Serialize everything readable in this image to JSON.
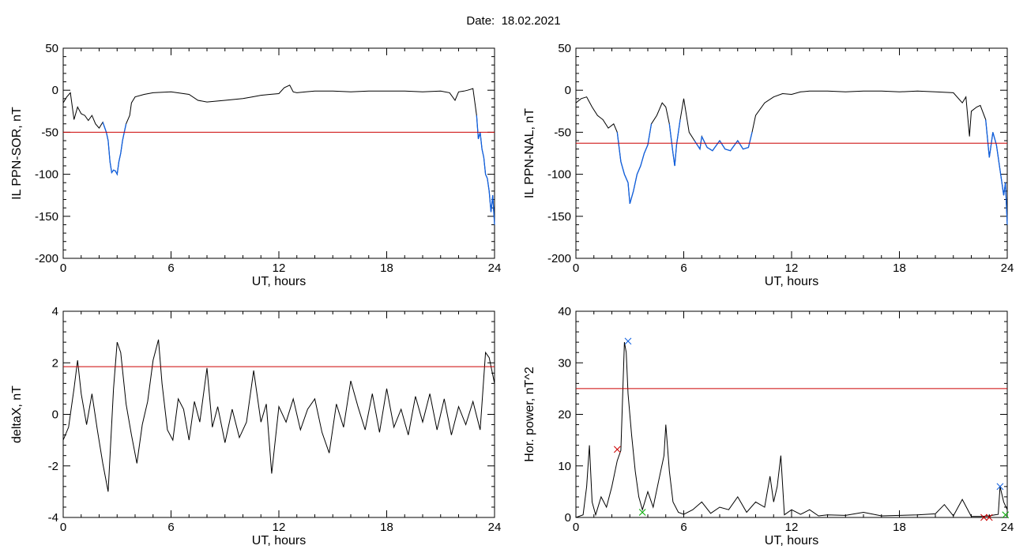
{
  "header": {
    "date_label": "Date:",
    "date_value": "18.02.2021"
  },
  "chart_data": [
    {
      "type": "line",
      "id": "sor",
      "xlabel": "UT, hours",
      "ylabel": "IL PPN-SOR, nT",
      "xlim": [
        0,
        24
      ],
      "ylim": [
        -200,
        50
      ],
      "xticks": [
        0,
        6,
        12,
        18,
        24
      ],
      "yticks": [
        50,
        0,
        -50,
        -100,
        -150,
        -200
      ],
      "threshold": -50,
      "line_color": "#000000",
      "below_color": "#1060e0",
      "threshold_color": "#cc0000",
      "series": [
        {
          "x": [
            0,
            0.2,
            0.4,
            0.6,
            0.8,
            1.0,
            1.2,
            1.4,
            1.6,
            1.8,
            2.0,
            2.2,
            2.4,
            2.5,
            2.6,
            2.7,
            2.8,
            2.9,
            3.0,
            3.1,
            3.2,
            3.3,
            3.4,
            3.5,
            3.6,
            3.7,
            3.8,
            4.0,
            4.5,
            5,
            6,
            7,
            7.5,
            8,
            9,
            10,
            10.5,
            11,
            11.5,
            12,
            12.3,
            12.6,
            12.8,
            13,
            13.5,
            14,
            15,
            16,
            17,
            18,
            19,
            20,
            21,
            21.5,
            21.8,
            22,
            22.3,
            22.5,
            22.8,
            23.0,
            23.1,
            23.2,
            23.3,
            23.4,
            23.5,
            23.6,
            23.7,
            23.8,
            23.9,
            24
          ],
          "y": [
            -15,
            -8,
            -3,
            -35,
            -20,
            -28,
            -30,
            -36,
            -30,
            -40,
            -45,
            -38,
            -50,
            -60,
            -85,
            -98,
            -95,
            -96,
            -100,
            -85,
            -75,
            -60,
            -50,
            -40,
            -35,
            -30,
            -15,
            -8,
            -5,
            -3,
            -2,
            -5,
            -12,
            -14,
            -12,
            -10,
            -8,
            -6,
            -5,
            -4,
            3,
            6,
            -2,
            -3,
            -2,
            -1,
            -1,
            -2,
            -1,
            -1,
            -1,
            -2,
            -1,
            -3,
            -12,
            -2,
            -1,
            0,
            2,
            -30,
            -58,
            -50,
            -70,
            -80,
            -100,
            -105,
            -120,
            -145,
            -125,
            -160
          ]
        }
      ]
    },
    {
      "type": "line",
      "id": "nal",
      "xlabel": "UT, hours",
      "ylabel": "IL PPN-NAL, nT",
      "xlim": [
        0,
        24
      ],
      "ylim": [
        -200,
        50
      ],
      "xticks": [
        0,
        6,
        12,
        18,
        24
      ],
      "yticks": [
        50,
        0,
        -50,
        -100,
        -150,
        -200
      ],
      "threshold": -63,
      "line_color": "#000000",
      "below_color": "#1060e0",
      "threshold_color": "#cc0000",
      "series": [
        {
          "x": [
            0,
            0.3,
            0.6,
            0.9,
            1.2,
            1.5,
            1.8,
            2.1,
            2.3,
            2.5,
            2.7,
            2.9,
            3.0,
            3.2,
            3.4,
            3.6,
            3.8,
            4.0,
            4.2,
            4.5,
            4.8,
            5.0,
            5.2,
            5.4,
            5.5,
            5.6,
            5.8,
            6.0,
            6.3,
            6.6,
            6.9,
            7.0,
            7.3,
            7.6,
            8.0,
            8.3,
            8.6,
            9.0,
            9.3,
            9.6,
            9.8,
            10.0,
            10.5,
            11,
            11.5,
            12,
            12.5,
            13,
            14,
            15,
            16,
            17,
            18,
            19,
            20,
            21,
            21.5,
            21.7,
            21.9,
            22.0,
            22.3,
            22.5,
            22.8,
            23.0,
            23.2,
            23.4,
            23.6,
            23.8,
            23.9,
            24
          ],
          "y": [
            -15,
            -10,
            -8,
            -20,
            -30,
            -35,
            -45,
            -40,
            -50,
            -85,
            -100,
            -110,
            -135,
            -120,
            -100,
            -90,
            -75,
            -65,
            -40,
            -30,
            -15,
            -20,
            -40,
            -75,
            -90,
            -65,
            -35,
            -10,
            -50,
            -60,
            -70,
            -55,
            -68,
            -72,
            -60,
            -70,
            -72,
            -60,
            -70,
            -68,
            -50,
            -30,
            -15,
            -8,
            -4,
            -5,
            -2,
            -1,
            -1,
            -2,
            -1,
            -1,
            -2,
            -1,
            -2,
            -3,
            -15,
            -8,
            -55,
            -25,
            -20,
            -18,
            -35,
            -80,
            -50,
            -65,
            -95,
            -125,
            -110,
            -160
          ]
        }
      ]
    },
    {
      "type": "line",
      "id": "deltax",
      "xlabel": "UT, hours",
      "ylabel": "deltaX, nT",
      "xlim": [
        0,
        24
      ],
      "ylim": [
        -4,
        4
      ],
      "xticks": [
        0,
        6,
        12,
        18,
        24
      ],
      "yticks": [
        4,
        2,
        0,
        -2,
        -4
      ],
      "threshold": 1.85,
      "line_color": "#000000",
      "threshold_color": "#cc0000",
      "series": [
        {
          "x": [
            0,
            0.3,
            0.6,
            0.8,
            1.0,
            1.3,
            1.6,
            1.9,
            2.2,
            2.5,
            2.8,
            3.0,
            3.2,
            3.5,
            3.8,
            4.1,
            4.4,
            4.7,
            5.0,
            5.3,
            5.5,
            5.8,
            6.1,
            6.4,
            6.7,
            7.0,
            7.3,
            7.6,
            8.0,
            8.3,
            8.6,
            9.0,
            9.4,
            9.8,
            10.2,
            10.6,
            11.0,
            11.3,
            11.6,
            12.0,
            12.4,
            12.8,
            13.2,
            13.6,
            14.0,
            14.4,
            14.8,
            15.2,
            15.6,
            16.0,
            16.4,
            16.8,
            17.2,
            17.6,
            18.0,
            18.4,
            18.8,
            19.2,
            19.6,
            20.0,
            20.4,
            20.8,
            21.2,
            21.6,
            22.0,
            22.4,
            22.8,
            23.2,
            23.5,
            23.7,
            24
          ],
          "y": [
            -1.0,
            -0.5,
            1.0,
            2.1,
            0.8,
            -0.4,
            0.8,
            -0.6,
            -1.9,
            -3.0,
            1.0,
            2.8,
            2.4,
            0.4,
            -0.8,
            -1.9,
            -0.4,
            0.5,
            2.1,
            2.9,
            1.2,
            -0.6,
            -1.0,
            0.6,
            0.2,
            -1.0,
            0.5,
            -0.3,
            1.8,
            -0.5,
            0.3,
            -1.1,
            0.2,
            -0.9,
            -0.3,
            1.7,
            -0.3,
            0.4,
            -2.3,
            0.3,
            -0.3,
            0.6,
            -0.6,
            0.2,
            0.6,
            -0.7,
            -1.5,
            0.4,
            -0.5,
            1.3,
            0.3,
            -0.6,
            0.8,
            -0.7,
            1.0,
            -0.5,
            0.2,
            -0.8,
            0.7,
            -0.3,
            0.8,
            -0.6,
            0.6,
            -0.8,
            0.3,
            -0.4,
            0.5,
            -0.6,
            2.4,
            2.2,
            1.2
          ]
        }
      ]
    },
    {
      "type": "line",
      "id": "power",
      "xlabel": "UT, hours",
      "ylabel": "Hor. power, nT^2",
      "xlim": [
        0,
        24
      ],
      "ylim": [
        0,
        40
      ],
      "xticks": [
        0,
        6,
        12,
        18,
        24
      ],
      "yticks": [
        40,
        30,
        20,
        10,
        0
      ],
      "threshold": 25,
      "line_color": "#000000",
      "threshold_color": "#cc0000",
      "series": [
        {
          "x": [
            0,
            0.4,
            0.6,
            0.75,
            0.9,
            1.1,
            1.4,
            1.7,
            2.0,
            2.3,
            2.5,
            2.7,
            2.8,
            2.9,
            3.1,
            3.3,
            3.5,
            3.7,
            4.0,
            4.3,
            4.6,
            4.9,
            5.0,
            5.2,
            5.4,
            5.7,
            6.0,
            6.5,
            7.0,
            7.5,
            8.0,
            8.5,
            9.0,
            9.5,
            10.0,
            10.5,
            10.8,
            11.0,
            11.2,
            11.4,
            11.6,
            12.0,
            12.5,
            13.0,
            13.5,
            14,
            15,
            16,
            17,
            18,
            19,
            20,
            20.5,
            21,
            21.5,
            22,
            22.5,
            23,
            23.3,
            23.5,
            23.6,
            23.8,
            24
          ],
          "y": [
            0,
            0.5,
            6,
            14,
            3,
            0.5,
            4,
            2,
            6,
            11,
            13,
            34,
            32,
            24,
            16,
            9,
            4,
            1.5,
            5,
            2,
            7,
            12,
            18,
            9,
            3,
            1,
            0.6,
            1.5,
            3,
            0.8,
            2,
            1.5,
            4,
            1,
            3,
            2,
            8,
            3,
            6,
            12,
            0.5,
            1.5,
            0.6,
            1.5,
            0.3,
            0.5,
            0.4,
            1,
            0.3,
            0.4,
            0.5,
            0.7,
            2.5,
            0.3,
            3.5,
            0.2,
            0.2,
            0.3,
            0.5,
            0.6,
            6,
            3,
            1.5
          ]
        }
      ],
      "markers": [
        {
          "x": 2.3,
          "y": 13.2,
          "color": "#cc0000"
        },
        {
          "x": 2.9,
          "y": 34.2,
          "color": "#1060e0"
        },
        {
          "x": 3.7,
          "y": 1.0,
          "color": "#00aa00"
        },
        {
          "x": 22.7,
          "y": 0.0,
          "color": "#cc0000"
        },
        {
          "x": 23.0,
          "y": 0.0,
          "color": "#cc0000"
        },
        {
          "x": 23.6,
          "y": 6.0,
          "color": "#1060e0"
        },
        {
          "x": 23.9,
          "y": 0.5,
          "color": "#00aa00"
        }
      ]
    }
  ]
}
